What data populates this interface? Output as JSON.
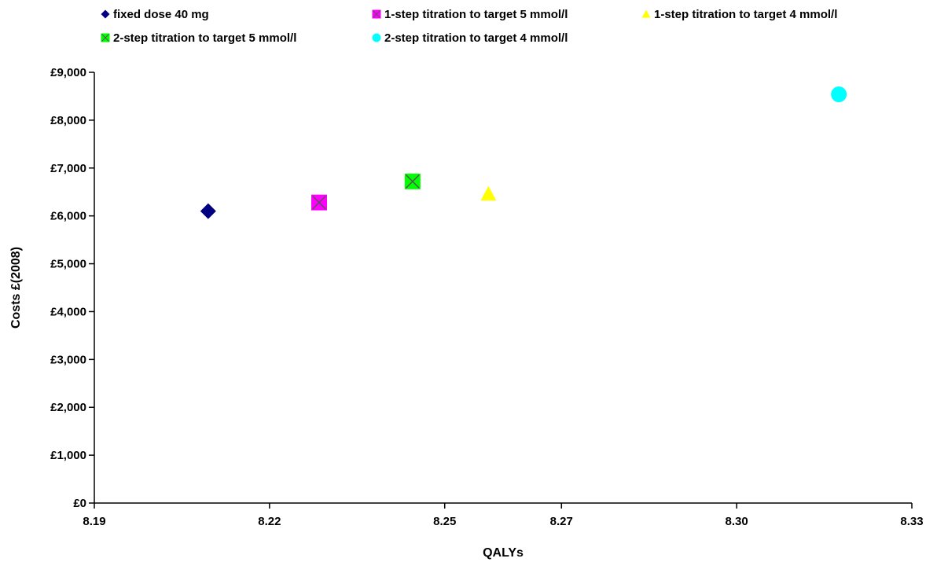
{
  "chart_data": {
    "type": "scatter",
    "title": "",
    "xlabel": "QALYs",
    "ylabel": "Costs £(2008)",
    "xlim": [
      8.19,
      8.33
    ],
    "ylim": [
      0,
      9000
    ],
    "x_ticks": [
      8.19,
      8.22,
      8.25,
      8.27,
      8.3,
      8.33
    ],
    "x_tick_labels": [
      "8.19",
      "8.22",
      "8.25",
      "8.27",
      "8.30",
      "8.33"
    ],
    "y_ticks": [
      0,
      1000,
      2000,
      3000,
      4000,
      5000,
      6000,
      7000,
      8000,
      9000
    ],
    "y_tick_labels": [
      "£0",
      "£1,000",
      "£2,000",
      "£3,000",
      "£4,000",
      "£5,000",
      "£6,000",
      "£7,000",
      "£8,000",
      "£9,000"
    ],
    "grid": false,
    "legend_position": "top",
    "series": [
      {
        "name": "fixed dose 40 mg",
        "marker": "diamond",
        "color": "#000080",
        "x": 8.2095,
        "y": 6100
      },
      {
        "name": "1-step titration to target 5 mmol/l",
        "marker": "square-x",
        "color": "#FF00FF",
        "x": 8.2285,
        "y": 6280
      },
      {
        "name": "1-step titration to target 4 mmol/l",
        "marker": "triangle",
        "color": "#FFFF00",
        "x": 8.2575,
        "y": 6460
      },
      {
        "name": "2-step titration to target 5 mmol/l",
        "marker": "square-x",
        "color": "#00FF00",
        "x": 8.2445,
        "y": 6720
      },
      {
        "name": "2-step titration to target 4 mmol/l",
        "marker": "circle",
        "color": "#00FFFF",
        "x": 8.3175,
        "y": 8540
      }
    ]
  }
}
